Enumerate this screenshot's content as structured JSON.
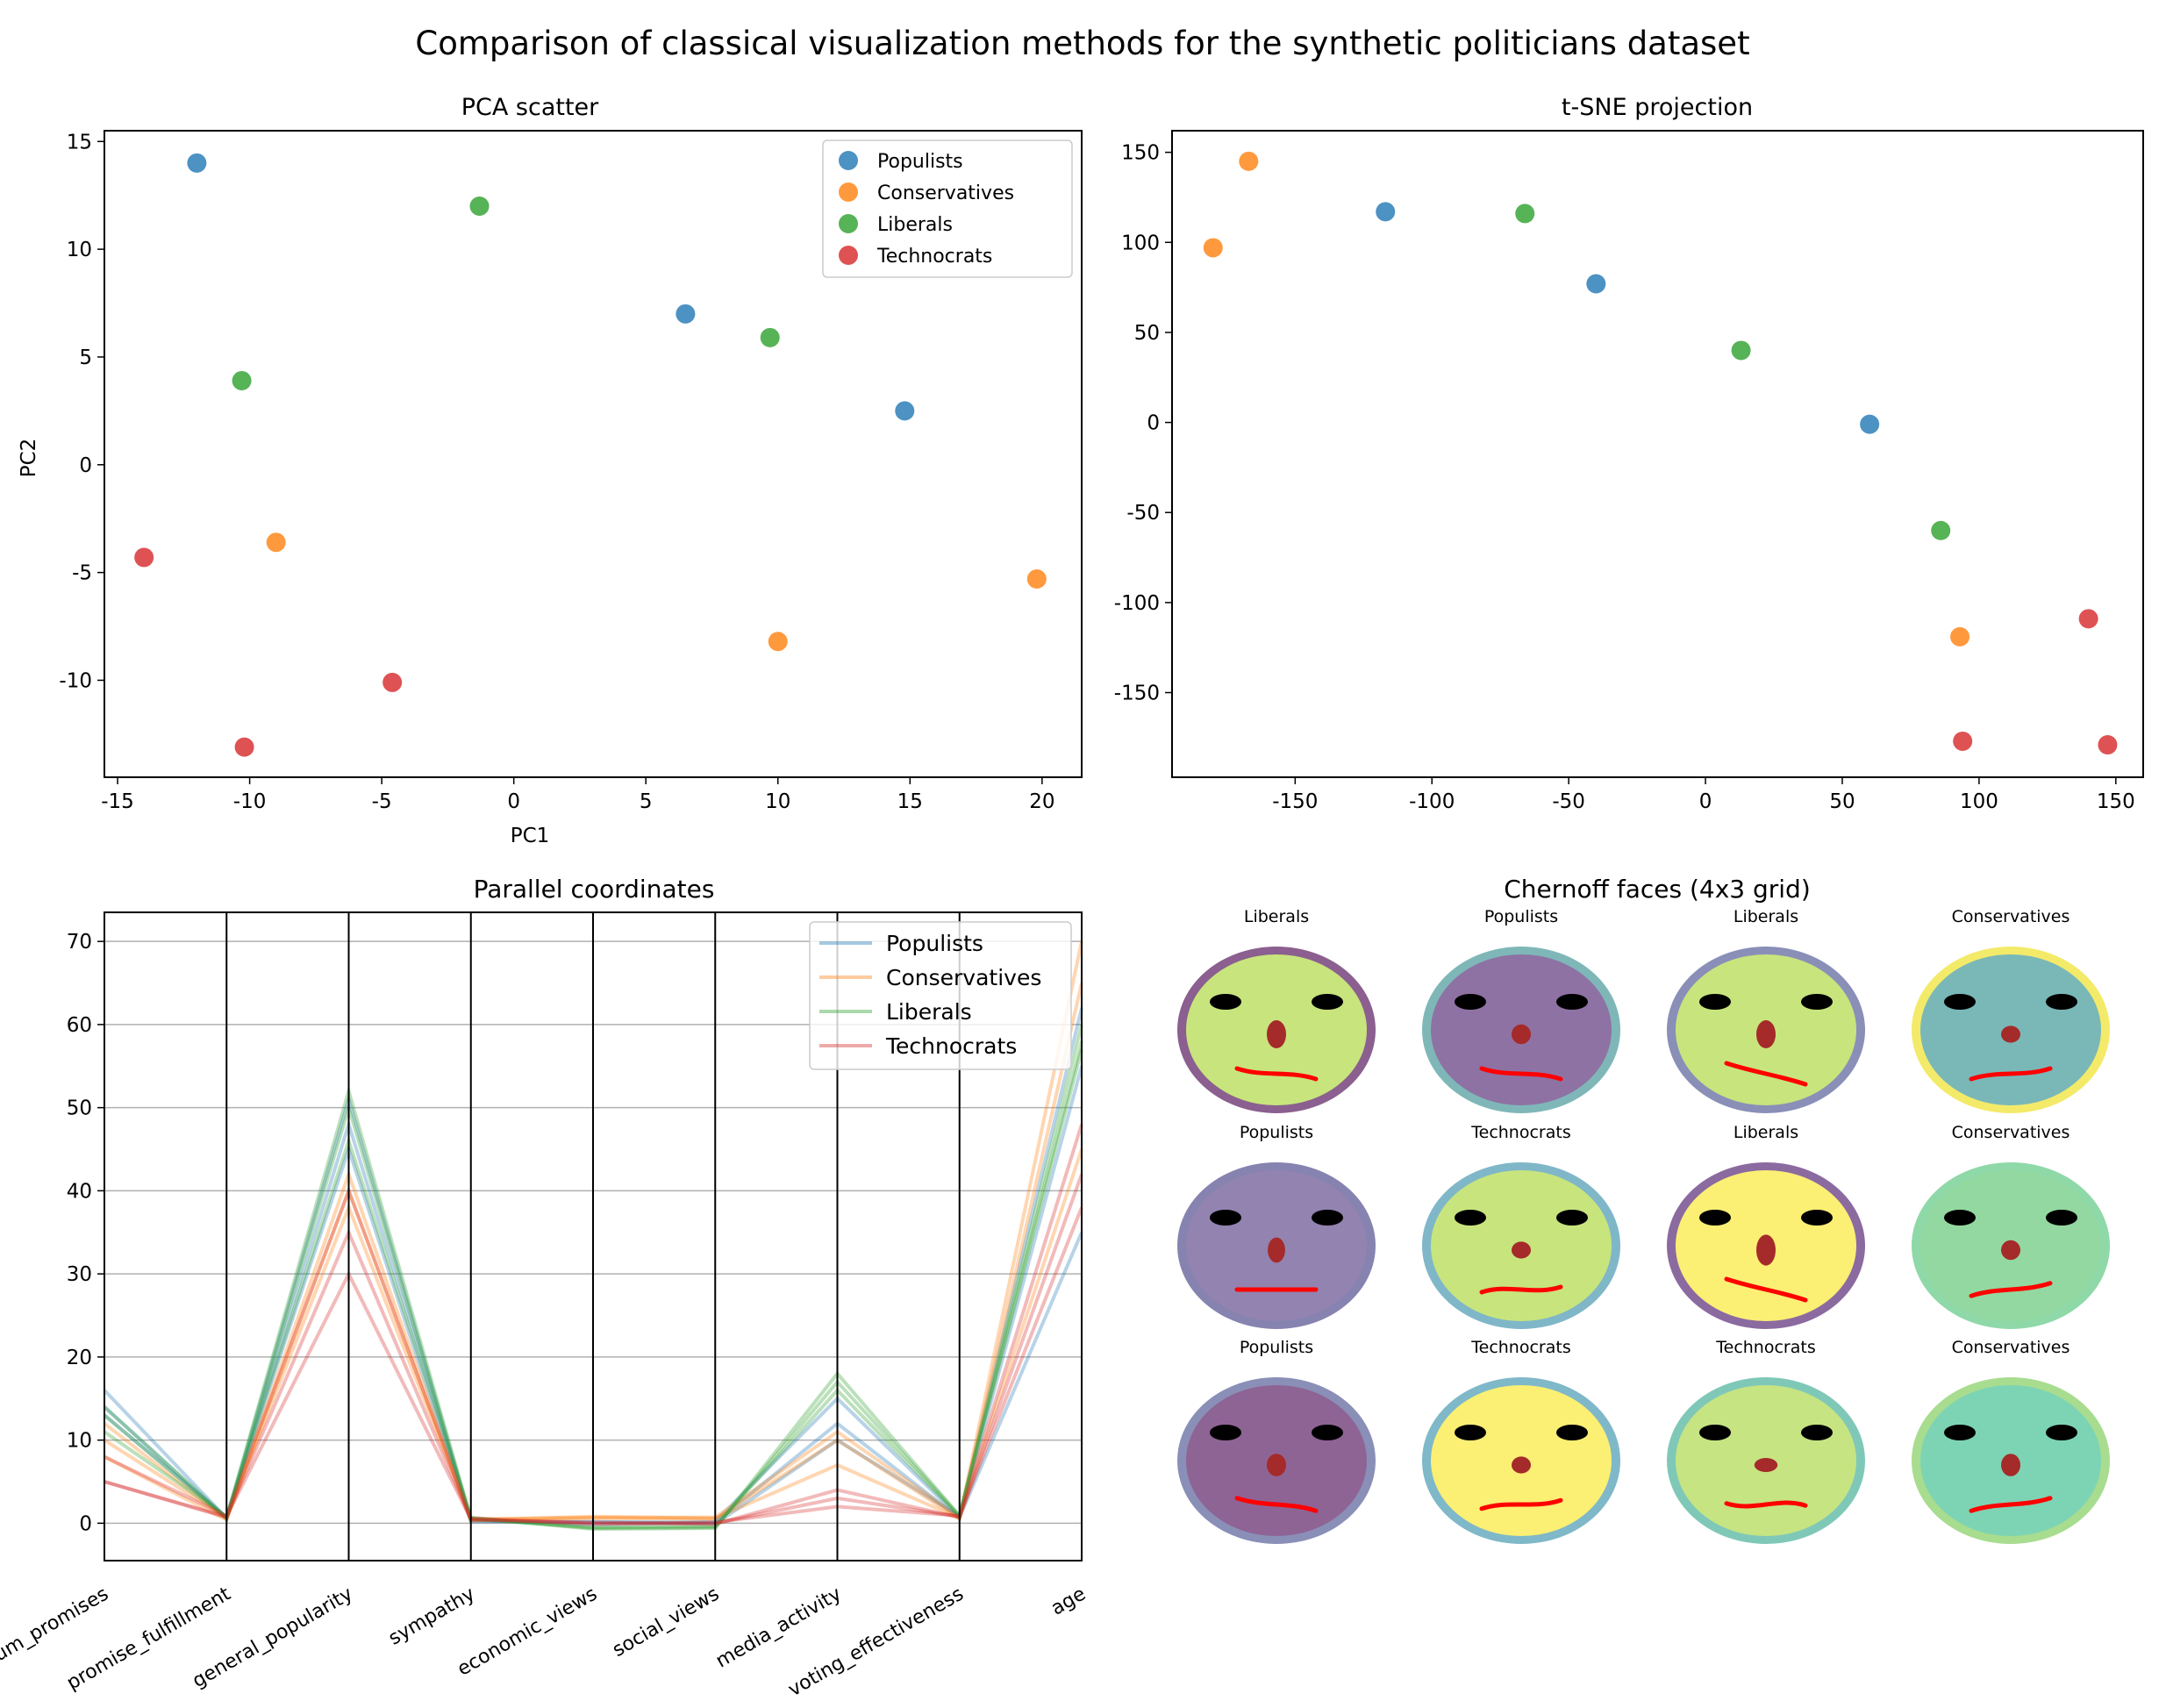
{
  "suptitle": "Comparison of classical visualization methods for the synthetic politicians dataset",
  "colors": {
    "Populists": "#1f77b4",
    "Conservatives": "#ff7f0e",
    "Liberals": "#2ca02c",
    "Technocrats": "#d62728"
  },
  "chart_data": [
    {
      "type": "scatter",
      "title": "PCA scatter",
      "xlabel": "PC1",
      "ylabel": "PC2",
      "xlim": [
        -15.5,
        21.5
      ],
      "ylim": [
        -14.5,
        15.5
      ],
      "xticks": [
        -15,
        -10,
        -5,
        0,
        5,
        10,
        15,
        20
      ],
      "yticks": [
        15,
        10,
        5,
        0,
        -5,
        -10
      ],
      "legend_position": "top-right",
      "series": [
        {
          "name": "Populists",
          "x": [
            -12,
            6.5,
            14.8
          ],
          "y": [
            14,
            7,
            2.5
          ]
        },
        {
          "name": "Conservatives",
          "x": [
            -9,
            10,
            19.8
          ],
          "y": [
            -3.6,
            -8.2,
            -5.3
          ]
        },
        {
          "name": "Liberals",
          "x": [
            -1.3,
            9.7,
            -10.3
          ],
          "y": [
            12,
            5.9,
            3.9
          ]
        },
        {
          "name": "Technocrats",
          "x": [
            -14,
            -4.6,
            -10.2
          ],
          "y": [
            -4.3,
            -10.1,
            -13.1
          ]
        }
      ]
    },
    {
      "type": "scatter",
      "title": "t-SNE projection",
      "xlabel": "",
      "ylabel": "",
      "xlim": [
        -195,
        160
      ],
      "ylim": [
        -197,
        162
      ],
      "xticks": [
        -150,
        -100,
        -50,
        0,
        50,
        100,
        150
      ],
      "yticks": [
        150,
        100,
        50,
        0,
        -50,
        -100,
        -150
      ],
      "series": [
        {
          "name": "Populists",
          "x": [
            -117,
            -40,
            60
          ],
          "y": [
            117,
            77,
            -1
          ]
        },
        {
          "name": "Conservatives",
          "x": [
            -167,
            -180,
            93
          ],
          "y": [
            145,
            97,
            -119
          ]
        },
        {
          "name": "Liberals",
          "x": [
            -66,
            13,
            86
          ],
          "y": [
            116,
            40,
            -60
          ]
        },
        {
          "name": "Technocrats",
          "x": [
            140,
            94,
            147
          ],
          "y": [
            -109,
            -177,
            -179
          ]
        }
      ]
    },
    {
      "type": "line",
      "subtype": "parallel_coordinates",
      "title": "Parallel coordinates",
      "categories": [
        "num_promises",
        "promise_fulfillment",
        "general_popularity",
        "sympathy",
        "economic_views",
        "social_views",
        "media_activity",
        "voting_effectiveness",
        "age"
      ],
      "ylim": [
        -4.5,
        73.5
      ],
      "yticks": [
        70,
        60,
        50,
        40,
        30,
        20,
        10,
        0
      ],
      "legend_position": "top-right",
      "series": [
        {
          "name": "Populists",
          "values": [
            16,
            0.6,
            51,
            0.3,
            0.1,
            0.2,
            15,
            0.7,
            35
          ]
        },
        {
          "name": "Populists",
          "values": [
            14,
            0.5,
            48,
            0.4,
            -0.2,
            0.1,
            12,
            0.6,
            55
          ]
        },
        {
          "name": "Populists",
          "values": [
            13,
            0.7,
            45,
            0.2,
            0.2,
            -0.1,
            10,
            0.8,
            62
          ]
        },
        {
          "name": "Conservatives",
          "values": [
            12,
            0.5,
            40,
            0.4,
            0.8,
            0.6,
            7,
            0.6,
            70
          ]
        },
        {
          "name": "Conservatives",
          "values": [
            8,
            0.4,
            42,
            0.3,
            0.6,
            0.5,
            10,
            0.5,
            65
          ]
        },
        {
          "name": "Conservatives",
          "values": [
            10,
            0.6,
            38,
            0.5,
            0.7,
            0.7,
            11,
            0.7,
            45
          ]
        },
        {
          "name": "Liberals",
          "values": [
            14,
            0.7,
            52,
            0.6,
            -0.6,
            -0.5,
            17,
            0.9,
            58
          ]
        },
        {
          "name": "Liberals",
          "values": [
            13,
            0.6,
            50,
            0.5,
            -0.5,
            -0.4,
            16,
            0.8,
            60
          ]
        },
        {
          "name": "Liberals",
          "values": [
            11,
            0.8,
            46,
            0.7,
            -0.7,
            -0.6,
            18,
            0.9,
            57
          ]
        },
        {
          "name": "Technocrats",
          "values": [
            5,
            0.8,
            30,
            0.5,
            0,
            0,
            3,
            0.8,
            48
          ]
        },
        {
          "name": "Technocrats",
          "values": [
            5,
            0.7,
            35,
            0.4,
            0.1,
            -0.1,
            4,
            0.7,
            42
          ]
        },
        {
          "name": "Technocrats",
          "values": [
            8,
            0.9,
            40,
            0.6,
            -0.1,
            0.1,
            2,
            0.9,
            38
          ]
        }
      ],
      "legend": [
        "Populists",
        "Conservatives",
        "Liberals",
        "Technocrats"
      ]
    }
  ],
  "chernoff": {
    "title": "Chernoff faces (4x3 grid)",
    "faces": [
      {
        "label": "Liberals",
        "face": "#c8e47d",
        "rim": "#8b5f8f",
        "nose": 1.0,
        "nose_w": 1.0,
        "mouth": 1
      },
      {
        "label": "Populists",
        "face": "#8e72a4",
        "rim": "#7fb7b8",
        "nose": 0.7,
        "nose_w": 1.0,
        "mouth": 1
      },
      {
        "label": "Liberals",
        "face": "#c8e47d",
        "rim": "#8a8fb8",
        "nose": 1.0,
        "nose_w": 1.0,
        "mouth": 2
      },
      {
        "label": "Conservatives",
        "face": "#7ab8b8",
        "rim": "#f4ea6a",
        "nose": 0.6,
        "nose_w": 1.0,
        "mouth": -1
      },
      {
        "label": "Populists",
        "face": "#9283b0",
        "rim": "#8683b0",
        "nose": 0.9,
        "nose_w": 0.9,
        "mouth": 0
      },
      {
        "label": "Technocrats",
        "face": "#c8e47d",
        "rim": "#7fb7c8",
        "nose": 0.6,
        "nose_w": 1.0,
        "mouth": -0.5
      },
      {
        "label": "Liberals",
        "face": "#fbef74",
        "rim": "#8b6aa0",
        "nose": 1.1,
        "nose_w": 1.0,
        "mouth": 2
      },
      {
        "label": "Conservatives",
        "face": "#93d8a0",
        "rim": "#8fd8a8",
        "nose": 0.7,
        "nose_w": 1.0,
        "mouth": -1.2
      },
      {
        "label": "Populists",
        "face": "#8e6494",
        "rim": "#8a8fb8",
        "nose": 0.8,
        "nose_w": 1.0,
        "mouth": 1.2
      },
      {
        "label": "Technocrats",
        "face": "#fbef74",
        "rim": "#7fb8c8",
        "nose": 0.6,
        "nose_w": 1.0,
        "mouth": -0.8
      },
      {
        "label": "Technocrats",
        "face": "#c6e482",
        "rim": "#7fc8b8",
        "nose": 0.5,
        "nose_w": 1.2,
        "mouth": 0.2
      },
      {
        "label": "Conservatives",
        "face": "#7dd4b4",
        "rim": "#a8dc8f",
        "nose": 0.8,
        "nose_w": 1.0,
        "mouth": -1.2
      }
    ]
  }
}
